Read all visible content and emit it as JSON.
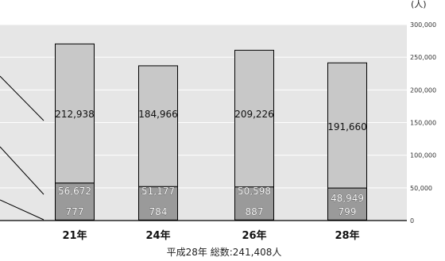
{
  "chart_data": {
    "type": "bar",
    "stacked": true,
    "categories": [
      "21年",
      "24年",
      "26年",
      "28年"
    ],
    "series": [
      {
        "values": [
          777,
          784,
          887,
          799
        ],
        "color": "#8c8c8c"
      },
      {
        "values": [
          56672,
          51177,
          50598,
          48949
        ],
        "color": "#9a9a9a"
      },
      {
        "values": [
          212938,
          184966,
          209226,
          191660
        ],
        "color": "#c8c8c8"
      }
    ],
    "value_labels": [
      [
        "777",
        "784",
        "887",
        "799"
      ],
      [
        "56,672",
        "51,177",
        "50,598",
        "48,949"
      ],
      [
        "212,938",
        "184,966",
        "209,226",
        "191,660"
      ]
    ],
    "unit": "(人)",
    "y_ticks": [
      "0",
      "50,000",
      "100,000",
      "150,000",
      "200,000",
      "250,000",
      "300,000"
    ],
    "ylim": [
      0,
      300000
    ],
    "grid": true,
    "axis_side": "right",
    "caption": "平成28年 総数:241,408人",
    "plot_background": "#e6e6e6"
  }
}
